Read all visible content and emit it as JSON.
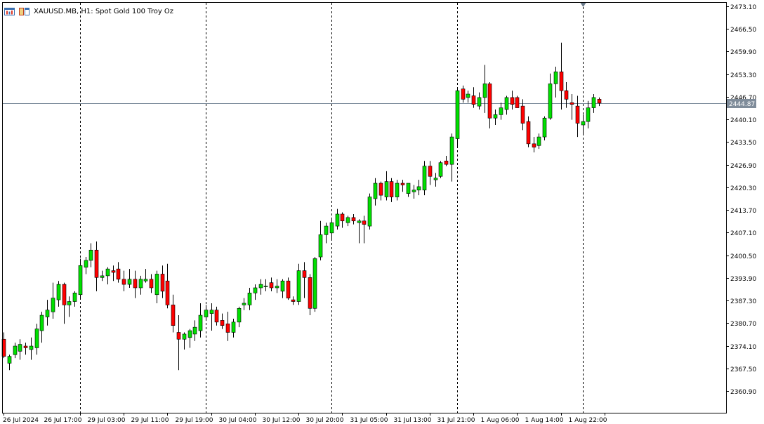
{
  "header": {
    "symbol": "XAUUSD.MB",
    "timeframe": "H1",
    "description": "Spot Gold 100 Troy Oz",
    "text": "XAUUSD.MB, H1:  Spot Gold 100 Troy Oz",
    "icons": [
      "chart-bars-icon",
      "window-tiles-icon"
    ]
  },
  "colors": {
    "bull": "#00e000",
    "bear": "#ff0000",
    "wick": "#000000",
    "price_line": "#7a8a9a",
    "price_label_bg": "#7f8c9a",
    "axis": "#000000",
    "separator": "#000000",
    "background": "#ffffff"
  },
  "chart_data": {
    "type": "candlestick",
    "grid": false,
    "period_separators": true,
    "current_price": 2444.87,
    "current_price_label": "2444.87",
    "ylim": [
      2354.1,
      2473.1
    ],
    "y_ticks": [
      2473.1,
      2466.5,
      2459.9,
      2453.3,
      2446.7,
      2440.1,
      2433.5,
      2426.9,
      2420.3,
      2413.7,
      2407.1,
      2400.5,
      2393.9,
      2387.3,
      2380.7,
      2374.1,
      2367.5,
      2360.9
    ],
    "y_tick_labels": [
      "2473.10",
      "2466.50",
      "2459.90",
      "2453.30",
      "2446.70",
      "2440.10",
      "2433.50",
      "2426.90",
      "2420.30",
      "2413.70",
      "2407.10",
      "2400.50",
      "2393.90",
      "2387.30",
      "2380.70",
      "2374.10",
      "2367.50",
      "2360.90"
    ],
    "x_tick_labels": [
      {
        "bar": 0,
        "label": "26 Jul 2024"
      },
      {
        "bar": 14,
        "label": "26 Jul 17:00"
      },
      {
        "bar": 22,
        "label": "29 Jul 03:00"
      },
      {
        "bar": 30,
        "label": "29 Jul 11:00"
      },
      {
        "bar": 38,
        "label": "29 Jul 19:00"
      },
      {
        "bar": 46,
        "label": "30 Jul 04:00"
      },
      {
        "bar": 54,
        "label": "30 Jul 12:00"
      },
      {
        "bar": 62,
        "label": "30 Jul 20:00"
      },
      {
        "bar": 70,
        "label": "31 Jul 05:00"
      },
      {
        "bar": 78,
        "label": "31 Jul 13:00"
      },
      {
        "bar": 86,
        "label": "31 Jul 21:00"
      },
      {
        "bar": 94,
        "label": "1 Aug 06:00"
      },
      {
        "bar": 102,
        "label": "1 Aug 14:00"
      },
      {
        "bar": 110,
        "label": "1 Aug 22:00"
      }
    ],
    "separators_at_bars": [
      14,
      37,
      60,
      83,
      106
    ],
    "last_bar_marker_at_bar": 106,
    "candles": [
      {
        "o": 2376.0,
        "h": 2378.0,
        "l": 2370.5,
        "c": 2371.0
      },
      {
        "o": 2369.0,
        "h": 2371.5,
        "l": 2367.0,
        "c": 2371.0
      },
      {
        "o": 2371.5,
        "h": 2375.0,
        "l": 2370.5,
        "c": 2374.0
      },
      {
        "o": 2372.5,
        "h": 2376.0,
        "l": 2370.0,
        "c": 2374.5
      },
      {
        "o": 2374.0,
        "h": 2375.0,
        "l": 2371.5,
        "c": 2373.5
      },
      {
        "o": 2373.0,
        "h": 2376.5,
        "l": 2370.0,
        "c": 2374.0
      },
      {
        "o": 2373.5,
        "h": 2380.5,
        "l": 2371.5,
        "c": 2379.0
      },
      {
        "o": 2378.5,
        "h": 2384.0,
        "l": 2375.0,
        "c": 2383.0
      },
      {
        "o": 2382.5,
        "h": 2387.5,
        "l": 2380.0,
        "c": 2384.5
      },
      {
        "o": 2384.0,
        "h": 2392.5,
        "l": 2382.0,
        "c": 2388.0
      },
      {
        "o": 2387.5,
        "h": 2393.0,
        "l": 2385.5,
        "c": 2392.0
      },
      {
        "o": 2392.0,
        "h": 2392.5,
        "l": 2380.5,
        "c": 2386.0
      },
      {
        "o": 2386.0,
        "h": 2388.5,
        "l": 2382.5,
        "c": 2387.0
      },
      {
        "o": 2387.0,
        "h": 2390.0,
        "l": 2385.5,
        "c": 2389.5
      },
      {
        "o": 2389.0,
        "h": 2399.5,
        "l": 2388.0,
        "c": 2397.5
      },
      {
        "o": 2397.0,
        "h": 2400.0,
        "l": 2395.0,
        "c": 2399.0
      },
      {
        "o": 2399.0,
        "h": 2404.0,
        "l": 2397.0,
        "c": 2402.0
      },
      {
        "o": 2402.0,
        "h": 2404.5,
        "l": 2390.0,
        "c": 2394.0
      },
      {
        "o": 2394.0,
        "h": 2396.0,
        "l": 2393.0,
        "c": 2394.5
      },
      {
        "o": 2394.5,
        "h": 2397.0,
        "l": 2392.0,
        "c": 2396.5
      },
      {
        "o": 2396.0,
        "h": 2397.5,
        "l": 2393.0,
        "c": 2395.5
      },
      {
        "o": 2396.5,
        "h": 2398.5,
        "l": 2392.5,
        "c": 2393.5
      },
      {
        "o": 2393.5,
        "h": 2396.0,
        "l": 2390.0,
        "c": 2392.0
      },
      {
        "o": 2392.0,
        "h": 2396.5,
        "l": 2391.0,
        "c": 2393.5
      },
      {
        "o": 2393.5,
        "h": 2396.0,
        "l": 2388.0,
        "c": 2391.0
      },
      {
        "o": 2391.0,
        "h": 2394.5,
        "l": 2389.0,
        "c": 2393.5
      },
      {
        "o": 2393.0,
        "h": 2396.5,
        "l": 2392.5,
        "c": 2393.5
      },
      {
        "o": 2393.5,
        "h": 2395.0,
        "l": 2389.5,
        "c": 2391.0
      },
      {
        "o": 2389.0,
        "h": 2396.0,
        "l": 2386.5,
        "c": 2395.0
      },
      {
        "o": 2395.0,
        "h": 2397.5,
        "l": 2388.0,
        "c": 2390.0
      },
      {
        "o": 2393.0,
        "h": 2398.0,
        "l": 2385.0,
        "c": 2386.0
      },
      {
        "o": 2386.0,
        "h": 2389.0,
        "l": 2378.0,
        "c": 2380.0
      },
      {
        "o": 2378.0,
        "h": 2383.0,
        "l": 2367.0,
        "c": 2376.0
      },
      {
        "o": 2376.0,
        "h": 2378.0,
        "l": 2373.0,
        "c": 2377.5
      },
      {
        "o": 2376.5,
        "h": 2379.0,
        "l": 2373.5,
        "c": 2378.5
      },
      {
        "o": 2377.5,
        "h": 2381.5,
        "l": 2375.5,
        "c": 2379.5
      },
      {
        "o": 2378.5,
        "h": 2386.5,
        "l": 2376.5,
        "c": 2383.0
      },
      {
        "o": 2382.5,
        "h": 2386.0,
        "l": 2381.5,
        "c": 2384.5
      },
      {
        "o": 2383.5,
        "h": 2386.5,
        "l": 2378.5,
        "c": 2384.5
      },
      {
        "o": 2384.5,
        "h": 2385.5,
        "l": 2380.0,
        "c": 2381.0
      },
      {
        "o": 2381.5,
        "h": 2383.5,
        "l": 2379.0,
        "c": 2380.0
      },
      {
        "o": 2380.5,
        "h": 2384.0,
        "l": 2375.5,
        "c": 2378.0
      },
      {
        "o": 2378.0,
        "h": 2382.0,
        "l": 2376.5,
        "c": 2381.0
      },
      {
        "o": 2381.0,
        "h": 2385.5,
        "l": 2379.5,
        "c": 2385.0
      },
      {
        "o": 2386.0,
        "h": 2388.0,
        "l": 2384.5,
        "c": 2386.5
      },
      {
        "o": 2386.0,
        "h": 2391.0,
        "l": 2384.5,
        "c": 2389.5
      },
      {
        "o": 2389.5,
        "h": 2392.0,
        "l": 2387.5,
        "c": 2391.0
      },
      {
        "o": 2391.0,
        "h": 2393.5,
        "l": 2389.0,
        "c": 2392.0
      },
      {
        "o": 2391.5,
        "h": 2393.5,
        "l": 2390.0,
        "c": 2391.5
      },
      {
        "o": 2392.5,
        "h": 2394.0,
        "l": 2390.0,
        "c": 2391.0
      },
      {
        "o": 2391.0,
        "h": 2393.5,
        "l": 2389.5,
        "c": 2391.5
      },
      {
        "o": 2390.0,
        "h": 2393.5,
        "l": 2388.0,
        "c": 2393.0
      },
      {
        "o": 2393.0,
        "h": 2394.0,
        "l": 2387.5,
        "c": 2388.0
      },
      {
        "o": 2387.5,
        "h": 2388.5,
        "l": 2386.0,
        "c": 2387.0
      },
      {
        "o": 2387.0,
        "h": 2398.0,
        "l": 2386.0,
        "c": 2396.0
      },
      {
        "o": 2396.0,
        "h": 2398.5,
        "l": 2388.0,
        "c": 2394.0
      },
      {
        "o": 2394.0,
        "h": 2395.0,
        "l": 2383.0,
        "c": 2385.0
      },
      {
        "o": 2385.0,
        "h": 2400.0,
        "l": 2384.0,
        "c": 2399.5
      },
      {
        "o": 2400.0,
        "h": 2410.5,
        "l": 2399.0,
        "c": 2406.5
      },
      {
        "o": 2406.5,
        "h": 2410.0,
        "l": 2404.0,
        "c": 2409.0
      },
      {
        "o": 2407.0,
        "h": 2411.5,
        "l": 2405.0,
        "c": 2410.0
      },
      {
        "o": 2409.0,
        "h": 2414.0,
        "l": 2408.0,
        "c": 2412.5
      },
      {
        "o": 2412.5,
        "h": 2413.0,
        "l": 2408.5,
        "c": 2410.5
      },
      {
        "o": 2410.0,
        "h": 2412.0,
        "l": 2409.0,
        "c": 2411.5
      },
      {
        "o": 2411.5,
        "h": 2412.5,
        "l": 2409.5,
        "c": 2410.5
      },
      {
        "o": 2410.0,
        "h": 2411.0,
        "l": 2404.0,
        "c": 2410.5
      },
      {
        "o": 2410.5,
        "h": 2412.0,
        "l": 2404.0,
        "c": 2409.5
      },
      {
        "o": 2409.0,
        "h": 2418.5,
        "l": 2408.0,
        "c": 2417.5
      },
      {
        "o": 2417.0,
        "h": 2423.0,
        "l": 2415.0,
        "c": 2421.5
      },
      {
        "o": 2421.5,
        "h": 2422.0,
        "l": 2416.5,
        "c": 2418.0
      },
      {
        "o": 2417.5,
        "h": 2425.0,
        "l": 2416.5,
        "c": 2422.0
      },
      {
        "o": 2422.0,
        "h": 2423.0,
        "l": 2416.0,
        "c": 2417.5
      },
      {
        "o": 2417.5,
        "h": 2422.5,
        "l": 2416.5,
        "c": 2421.5
      },
      {
        "o": 2421.5,
        "h": 2422.5,
        "l": 2419.0,
        "c": 2421.0
      },
      {
        "o": 2418.5,
        "h": 2421.5,
        "l": 2417.5,
        "c": 2421.5
      },
      {
        "o": 2419.0,
        "h": 2421.0,
        "l": 2417.0,
        "c": 2419.5
      },
      {
        "o": 2419.5,
        "h": 2422.5,
        "l": 2418.0,
        "c": 2420.5
      },
      {
        "o": 2419.5,
        "h": 2428.0,
        "l": 2418.0,
        "c": 2426.5
      },
      {
        "o": 2426.5,
        "h": 2428.0,
        "l": 2421.0,
        "c": 2423.5
      },
      {
        "o": 2422.5,
        "h": 2424.5,
        "l": 2420.5,
        "c": 2423.0
      },
      {
        "o": 2423.5,
        "h": 2428.0,
        "l": 2423.0,
        "c": 2427.5
      },
      {
        "o": 2428.0,
        "h": 2429.5,
        "l": 2426.5,
        "c": 2427.0
      },
      {
        "o": 2427.0,
        "h": 2436.0,
        "l": 2422.0,
        "c": 2435.0
      },
      {
        "o": 2434.5,
        "h": 2449.5,
        "l": 2432.0,
        "c": 2448.5
      },
      {
        "o": 2449.0,
        "h": 2450.0,
        "l": 2445.0,
        "c": 2446.0
      },
      {
        "o": 2446.5,
        "h": 2448.5,
        "l": 2445.0,
        "c": 2447.5
      },
      {
        "o": 2447.0,
        "h": 2449.5,
        "l": 2443.5,
        "c": 2444.5
      },
      {
        "o": 2444.0,
        "h": 2448.0,
        "l": 2443.0,
        "c": 2446.5
      },
      {
        "o": 2446.5,
        "h": 2456.0,
        "l": 2442.0,
        "c": 2450.5
      },
      {
        "o": 2450.5,
        "h": 2451.0,
        "l": 2437.5,
        "c": 2440.5
      },
      {
        "o": 2440.5,
        "h": 2443.0,
        "l": 2438.5,
        "c": 2441.5
      },
      {
        "o": 2441.5,
        "h": 2445.0,
        "l": 2440.0,
        "c": 2443.5
      },
      {
        "o": 2443.0,
        "h": 2447.0,
        "l": 2441.5,
        "c": 2446.5
      },
      {
        "o": 2446.5,
        "h": 2448.5,
        "l": 2443.0,
        "c": 2444.5
      },
      {
        "o": 2446.5,
        "h": 2447.0,
        "l": 2443.5,
        "c": 2443.5
      },
      {
        "o": 2444.0,
        "h": 2446.0,
        "l": 2437.0,
        "c": 2439.0
      },
      {
        "o": 2439.5,
        "h": 2441.0,
        "l": 2432.0,
        "c": 2433.0
      },
      {
        "o": 2433.0,
        "h": 2435.0,
        "l": 2430.5,
        "c": 2432.0
      },
      {
        "o": 2432.5,
        "h": 2436.0,
        "l": 2431.5,
        "c": 2435.0
      },
      {
        "o": 2435.0,
        "h": 2441.0,
        "l": 2434.0,
        "c": 2440.5
      },
      {
        "o": 2440.5,
        "h": 2453.5,
        "l": 2440.0,
        "c": 2450.5
      },
      {
        "o": 2450.5,
        "h": 2455.5,
        "l": 2446.5,
        "c": 2454.0
      },
      {
        "o": 2454.0,
        "h": 2462.5,
        "l": 2443.0,
        "c": 2448.5
      },
      {
        "o": 2448.5,
        "h": 2451.0,
        "l": 2443.5,
        "c": 2446.0
      },
      {
        "o": 2445.0,
        "h": 2447.5,
        "l": 2440.0,
        "c": 2444.5
      },
      {
        "o": 2444.0,
        "h": 2447.0,
        "l": 2435.0,
        "c": 2439.0
      },
      {
        "o": 2438.5,
        "h": 2441.5,
        "l": 2435.5,
        "c": 2439.5
      },
      {
        "o": 2439.5,
        "h": 2445.5,
        "l": 2437.5,
        "c": 2443.5
      },
      {
        "o": 2443.5,
        "h": 2447.5,
        "l": 2442.0,
        "c": 2446.5
      },
      {
        "o": 2446.0,
        "h": 2446.5,
        "l": 2444.0,
        "c": 2444.87
      }
    ]
  }
}
